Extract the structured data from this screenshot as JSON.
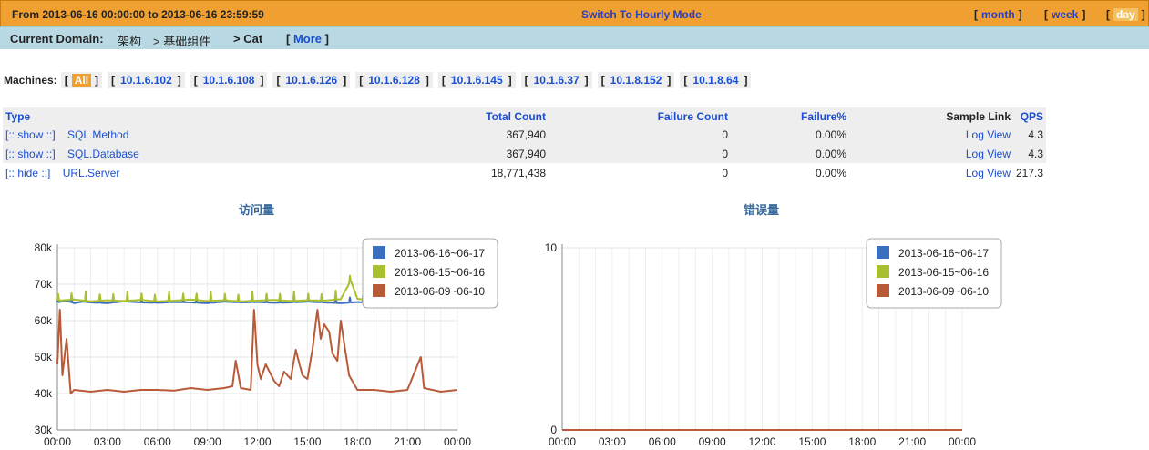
{
  "topbar": {
    "range": "From 2013-06-16 00:00:00 to 2013-06-16 23:59:59",
    "switch": "Switch To Hourly Mode",
    "modes": [
      "month",
      "week",
      "day"
    ],
    "active_mode": "day"
  },
  "domain_bar": {
    "label": "Current Domain:",
    "domain": "架构",
    "crumb1": "> 基础组件",
    "crumb2": "> Cat",
    "more": "More"
  },
  "machines": {
    "label": "Machines:",
    "all": "All",
    "ips": [
      "10.1.6.102",
      "10.1.6.108",
      "10.1.6.126",
      "10.1.6.128",
      "10.1.6.145",
      "10.1.6.37",
      "10.1.8.152",
      "10.1.8.64"
    ]
  },
  "table": {
    "headers": {
      "type": "Type",
      "total": "Total Count",
      "failure": "Failure Count",
      "failure_pct": "Failure%",
      "sample": "Sample Link",
      "qps": "QPS"
    },
    "rows": [
      {
        "toggle": "[:: show ::]",
        "name": "SQL.Method",
        "total": "367,940",
        "failure": "0",
        "failure_pct": "0.00%",
        "sample": "Log View",
        "qps": "4.3"
      },
      {
        "toggle": "[:: show ::]",
        "name": "SQL.Database",
        "total": "367,940",
        "failure": "0",
        "failure_pct": "0.00%",
        "sample": "Log View",
        "qps": "4.3"
      },
      {
        "toggle": "[:: hide ::]",
        "name": "URL.Server",
        "total": "18,771,438",
        "failure": "0",
        "failure_pct": "0.00%",
        "sample": "Log View",
        "qps": "217.3"
      }
    ]
  },
  "chart_data": [
    {
      "type": "line",
      "title": "访问量",
      "x_ticks": [
        "00:00",
        "03:00",
        "06:00",
        "09:00",
        "12:00",
        "15:00",
        "18:00",
        "21:00",
        "00:00"
      ],
      "y_ticks": [
        "30k",
        "40k",
        "50k",
        "60k",
        "70k",
        "80k"
      ],
      "ylim": [
        30000,
        80000
      ],
      "grid": true,
      "legend_position": "top-right",
      "series": [
        {
          "name": "2013-06-16~06-17",
          "color": "#3a6fc0",
          "baseline": 65000,
          "spike_amp": 2000,
          "x_hours": [
            0,
            0.5,
            1,
            1.5,
            2,
            3,
            4,
            5,
            6,
            7,
            8,
            9,
            10,
            11,
            12,
            13,
            14,
            15,
            16,
            17,
            18,
            19,
            20,
            21,
            22,
            23,
            24
          ],
          "values": [
            65000,
            65500,
            64800,
            65200,
            65000,
            64800,
            65300,
            65000,
            64900,
            65100,
            65000,
            64800,
            65200,
            65000,
            65100,
            64900,
            65000,
            65200,
            65000,
            64800,
            65100,
            65000,
            64900,
            65100,
            65000,
            65000,
            65000
          ]
        },
        {
          "name": "2013-06-15~06-16",
          "color": "#a8c030",
          "baseline": 65500,
          "spike_amp": 2500,
          "x_hours": [
            0,
            1,
            2,
            3,
            4,
            5,
            6,
            7,
            8,
            9,
            10,
            11,
            12,
            13,
            14,
            15,
            16,
            17,
            17.6,
            18,
            19,
            20,
            21,
            22,
            23,
            24
          ],
          "values": [
            65500,
            65800,
            65300,
            65600,
            65400,
            65700,
            65300,
            65500,
            65800,
            65400,
            65600,
            65300,
            65500,
            65700,
            65400,
            65600,
            65500,
            65900,
            71000,
            66000,
            65500,
            65700,
            65400,
            65600,
            65500,
            68000
          ]
        },
        {
          "name": "2013-06-09~06-10",
          "color": "#b85a38",
          "x_hours": [
            0,
            0.15,
            0.3,
            0.55,
            0.8,
            1,
            2,
            3,
            4,
            5,
            6,
            7,
            8,
            9,
            10,
            10.5,
            10.7,
            11,
            11.6,
            11.8,
            12,
            12.2,
            12.5,
            13,
            13.3,
            13.6,
            14,
            14.3,
            14.7,
            15,
            15.3,
            15.6,
            15.8,
            16,
            16.3,
            16.5,
            16.8,
            17,
            17.5,
            18,
            19,
            20,
            21,
            21.8,
            22,
            22.5,
            23,
            24
          ],
          "values": [
            48000,
            63000,
            45000,
            55000,
            40000,
            41000,
            40500,
            41000,
            40500,
            41000,
            41000,
            40800,
            41500,
            41000,
            41500,
            42000,
            49000,
            41500,
            41000,
            63000,
            48000,
            44000,
            48000,
            43500,
            42000,
            46000,
            44000,
            52000,
            45000,
            44000,
            52000,
            63000,
            55000,
            59000,
            57000,
            51000,
            49000,
            60000,
            45000,
            41000,
            41000,
            40500,
            41000,
            50000,
            41500,
            41000,
            40500,
            41000
          ]
        }
      ]
    },
    {
      "type": "line",
      "title": "错误量",
      "x_ticks": [
        "00:00",
        "03:00",
        "06:00",
        "09:00",
        "12:00",
        "15:00",
        "18:00",
        "21:00",
        "00:00"
      ],
      "y_ticks": [
        "0",
        "10"
      ],
      "ylim": [
        0,
        10
      ],
      "grid": true,
      "legend_position": "top-right",
      "series": [
        {
          "name": "2013-06-16~06-17",
          "color": "#3a6fc0",
          "x_hours": [
            0,
            24
          ],
          "values": [
            0,
            0
          ]
        },
        {
          "name": "2013-06-15~06-16",
          "color": "#a8c030",
          "x_hours": [
            0,
            24
          ],
          "values": [
            0,
            0
          ]
        },
        {
          "name": "2013-06-09~06-10",
          "color": "#b85a38",
          "x_hours": [
            0,
            24
          ],
          "values": [
            0,
            0
          ]
        }
      ]
    }
  ]
}
